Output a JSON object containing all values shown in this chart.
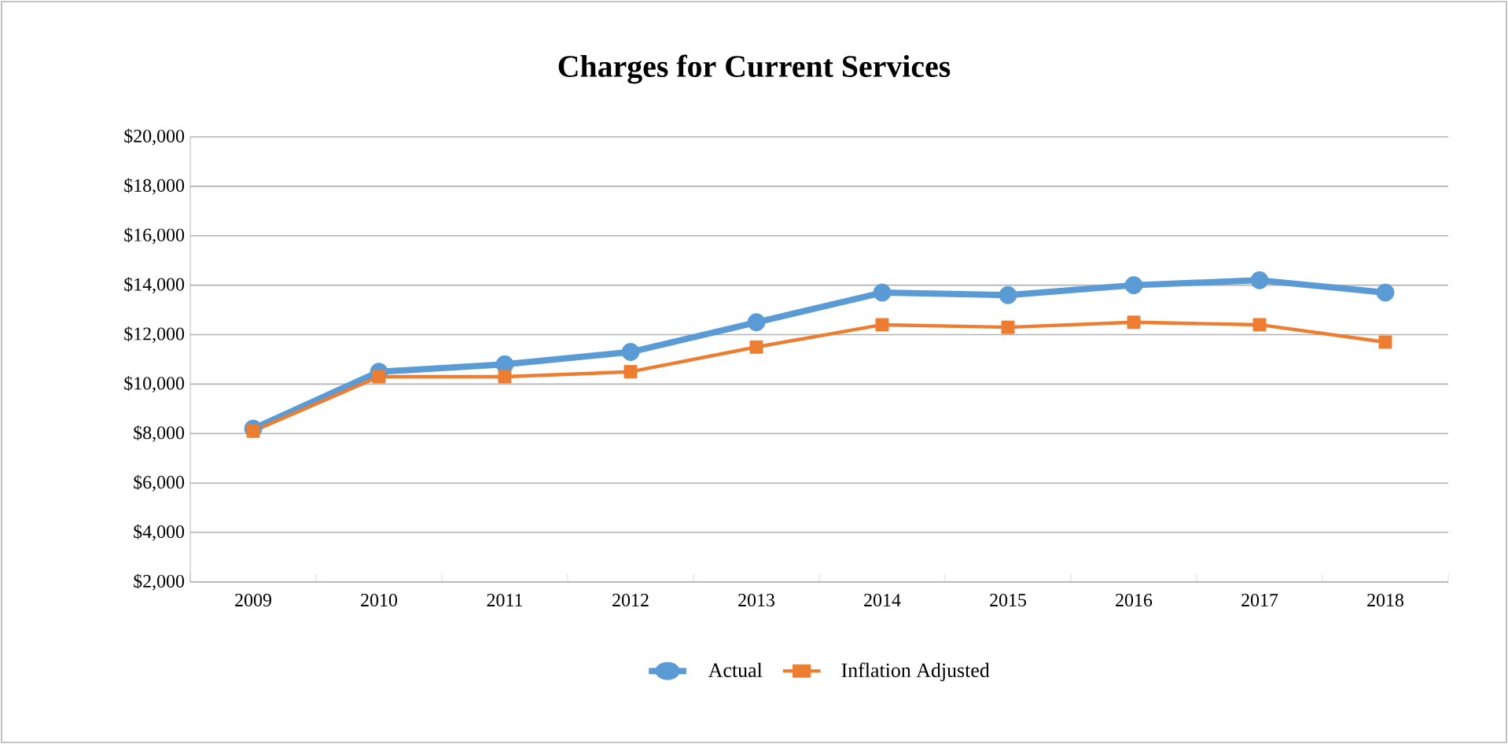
{
  "chart_data": {
    "type": "line",
    "title": "Charges for Current Services",
    "categories": [
      "2009",
      "2010",
      "2011",
      "2012",
      "2013",
      "2014",
      "2015",
      "2016",
      "2017",
      "2018"
    ],
    "series": [
      {
        "name": "Actual",
        "color": "#5b9bd5",
        "marker": "circle",
        "values": [
          8200,
          10500,
          10800,
          11300,
          12500,
          13700,
          13600,
          14000,
          14200,
          13700
        ]
      },
      {
        "name": "Inflation Adjusted",
        "color": "#ed7d31",
        "marker": "square",
        "values": [
          8100,
          10300,
          10300,
          10500,
          11500,
          12400,
          12300,
          12500,
          12400,
          11700
        ]
      }
    ],
    "ylim": [
      2000,
      20000
    ],
    "yticks": [
      {
        "value": 2000,
        "label": "$2,000"
      },
      {
        "value": 4000,
        "label": "$4,000"
      },
      {
        "value": 6000,
        "label": "$6,000"
      },
      {
        "value": 8000,
        "label": "$8,000"
      },
      {
        "value": 10000,
        "label": "$10,000"
      },
      {
        "value": 12000,
        "label": "$12,000"
      },
      {
        "value": 14000,
        "label": "$14,000"
      },
      {
        "value": 16000,
        "label": "$16,000"
      },
      {
        "value": 18000,
        "label": "$18,000"
      },
      {
        "value": 20000,
        "label": "$20,000"
      }
    ],
    "grid": "y",
    "legend": "bottom"
  }
}
